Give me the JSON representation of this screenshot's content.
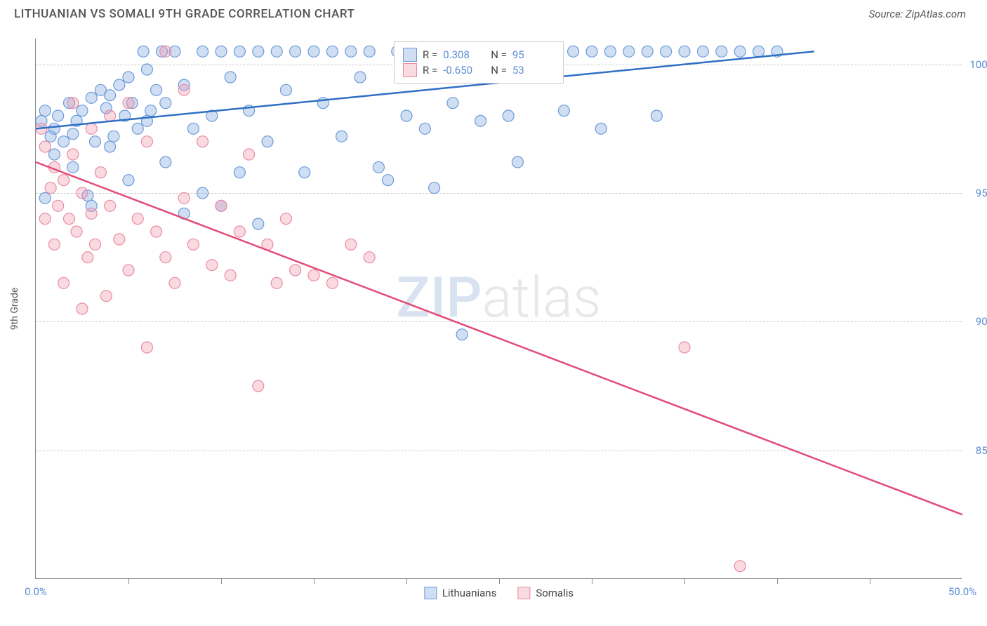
{
  "title": "LITHUANIAN VS SOMALI 9TH GRADE CORRELATION CHART",
  "source": "Source: ZipAtlas.com",
  "watermark": {
    "part1": "ZIP",
    "part2": "atlas"
  },
  "chart": {
    "type": "scatter",
    "ylabel": "9th Grade",
    "xlim": [
      0,
      50
    ],
    "ylim": [
      80,
      101
    ],
    "xtick_labels": [
      "0.0%",
      "50.0%"
    ],
    "xtick_positions_pct": [
      0,
      100
    ],
    "xtick_minor_positions_pct": [
      10,
      20,
      30,
      40,
      50,
      60,
      70,
      80,
      90
    ],
    "ytick_labels": [
      "85.0%",
      "90.0%",
      "95.0%",
      "100.0%"
    ],
    "ytick_values": [
      85,
      90,
      95,
      100
    ],
    "grid_color": "#cccccc",
    "background_color": "#ffffff",
    "axis_color": "#888888",
    "tick_label_color": "#5b8bd4",
    "title_fontsize": 17,
    "label_fontsize": 14,
    "series": [
      {
        "name": "Lithuanians",
        "color_fill": "rgba(120,160,220,0.35)",
        "color_stroke": "#6a9bd8",
        "line_color": "#2f6fc4",
        "R": "0.308",
        "N": "95",
        "trend": {
          "x1": 0,
          "y1": 97.5,
          "x2": 42,
          "y2": 100.5
        },
        "points": [
          [
            0.3,
            97.8
          ],
          [
            0.5,
            98.2
          ],
          [
            0.8,
            97.2
          ],
          [
            1.0,
            97.5
          ],
          [
            1.2,
            98.0
          ],
          [
            1.5,
            97.0
          ],
          [
            1.8,
            98.5
          ],
          [
            2.0,
            97.3
          ],
          [
            2.2,
            97.8
          ],
          [
            2.5,
            98.2
          ],
          [
            2.8,
            94.9
          ],
          [
            3.0,
            98.7
          ],
          [
            3.2,
            97.0
          ],
          [
            3.5,
            99.0
          ],
          [
            3.8,
            98.3
          ],
          [
            4.0,
            98.8
          ],
          [
            4.2,
            97.2
          ],
          [
            4.5,
            99.2
          ],
          [
            4.8,
            98.0
          ],
          [
            5.0,
            99.5
          ],
          [
            5.2,
            98.5
          ],
          [
            5.5,
            97.5
          ],
          [
            5.8,
            100.5
          ],
          [
            6.0,
            99.8
          ],
          [
            6.2,
            98.2
          ],
          [
            6.5,
            99.0
          ],
          [
            6.8,
            100.5
          ],
          [
            7.0,
            98.5
          ],
          [
            7.5,
            100.5
          ],
          [
            8.0,
            99.2
          ],
          [
            8.5,
            97.5
          ],
          [
            9.0,
            100.5
          ],
          [
            9.5,
            98.0
          ],
          [
            10.0,
            100.5
          ],
          [
            10.5,
            99.5
          ],
          [
            11.0,
            100.5
          ],
          [
            11.5,
            98.2
          ],
          [
            12.0,
            100.5
          ],
          [
            12.5,
            97.0
          ],
          [
            13.0,
            100.5
          ],
          [
            13.5,
            99.0
          ],
          [
            14.0,
            100.5
          ],
          [
            14.5,
            95.8
          ],
          [
            15.0,
            100.5
          ],
          [
            15.5,
            98.5
          ],
          [
            16.0,
            100.5
          ],
          [
            16.5,
            97.2
          ],
          [
            17.0,
            100.5
          ],
          [
            17.5,
            99.5
          ],
          [
            18.0,
            100.5
          ],
          [
            18.5,
            96.0
          ],
          [
            19.0,
            95.5
          ],
          [
            19.5,
            100.5
          ],
          [
            20.0,
            98.0
          ],
          [
            20.5,
            100.5
          ],
          [
            21.0,
            97.5
          ],
          [
            21.5,
            95.2
          ],
          [
            22.0,
            100.5
          ],
          [
            22.5,
            98.5
          ],
          [
            23.0,
            89.5
          ],
          [
            23.5,
            100.5
          ],
          [
            24.0,
            97.8
          ],
          [
            25.0,
            100.5
          ],
          [
            25.5,
            98.0
          ],
          [
            26.0,
            96.2
          ],
          [
            27.0,
            100.5
          ],
          [
            28.0,
            100.5
          ],
          [
            28.5,
            98.2
          ],
          [
            29.0,
            100.5
          ],
          [
            30.0,
            100.5
          ],
          [
            30.5,
            97.5
          ],
          [
            31.0,
            100.5
          ],
          [
            32.0,
            100.5
          ],
          [
            33.0,
            100.5
          ],
          [
            33.5,
            98.0
          ],
          [
            34.0,
            100.5
          ],
          [
            35.0,
            100.5
          ],
          [
            36.0,
            100.5
          ],
          [
            37.0,
            100.5
          ],
          [
            38.0,
            100.5
          ],
          [
            39.0,
            100.5
          ],
          [
            40.0,
            100.5
          ],
          [
            0.5,
            94.8
          ],
          [
            1.0,
            96.5
          ],
          [
            2.0,
            96.0
          ],
          [
            3.0,
            94.5
          ],
          [
            4.0,
            96.8
          ],
          [
            5.0,
            95.5
          ],
          [
            6.0,
            97.8
          ],
          [
            7.0,
            96.2
          ],
          [
            8.0,
            94.2
          ],
          [
            9.0,
            95.0
          ],
          [
            10.0,
            94.5
          ],
          [
            11.0,
            95.8
          ],
          [
            12.0,
            93.8
          ]
        ]
      },
      {
        "name": "Somalis",
        "color_fill": "rgba(240,150,170,0.35)",
        "color_stroke": "#e88ca5",
        "line_color": "#e24c78",
        "R": "-0.650",
        "N": "53",
        "trend": {
          "x1": 0,
          "y1": 96.2,
          "x2": 50,
          "y2": 82.5
        },
        "points": [
          [
            0.3,
            97.5
          ],
          [
            0.5,
            96.8
          ],
          [
            0.8,
            95.2
          ],
          [
            1.0,
            96.0
          ],
          [
            1.2,
            94.5
          ],
          [
            1.5,
            95.5
          ],
          [
            1.8,
            94.0
          ],
          [
            2.0,
            96.5
          ],
          [
            2.2,
            93.5
          ],
          [
            2.5,
            95.0
          ],
          [
            2.8,
            92.5
          ],
          [
            3.0,
            94.2
          ],
          [
            3.2,
            93.0
          ],
          [
            3.5,
            95.8
          ],
          [
            3.8,
            91.0
          ],
          [
            4.0,
            94.5
          ],
          [
            4.5,
            93.2
          ],
          [
            5.0,
            92.0
          ],
          [
            5.5,
            94.0
          ],
          [
            6.0,
            89.0
          ],
          [
            6.5,
            93.5
          ],
          [
            7.0,
            92.5
          ],
          [
            7.5,
            91.5
          ],
          [
            8.0,
            94.8
          ],
          [
            8.5,
            93.0
          ],
          [
            9.0,
            97.0
          ],
          [
            9.5,
            92.2
          ],
          [
            10.0,
            94.5
          ],
          [
            10.5,
            91.8
          ],
          [
            11.0,
            93.5
          ],
          [
            11.5,
            96.5
          ],
          [
            12.0,
            87.5
          ],
          [
            12.5,
            93.0
          ],
          [
            13.0,
            91.5
          ],
          [
            13.5,
            94.0
          ],
          [
            14.0,
            92.0
          ],
          [
            15.0,
            91.8
          ],
          [
            16.0,
            91.5
          ],
          [
            17.0,
            93.0
          ],
          [
            18.0,
            92.5
          ],
          [
            2.0,
            98.5
          ],
          [
            3.0,
            97.5
          ],
          [
            4.0,
            98.0
          ],
          [
            5.0,
            98.5
          ],
          [
            6.0,
            97.0
          ],
          [
            7.0,
            100.5
          ],
          [
            8.0,
            99.0
          ],
          [
            0.5,
            94.0
          ],
          [
            1.0,
            93.0
          ],
          [
            1.5,
            91.5
          ],
          [
            2.5,
            90.5
          ],
          [
            35.0,
            89.0
          ],
          [
            38.0,
            80.5
          ]
        ]
      }
    ],
    "legend_top": {
      "R_label": "R =",
      "N_label": "N ="
    },
    "legend_bottom_swatch_size": 18
  }
}
